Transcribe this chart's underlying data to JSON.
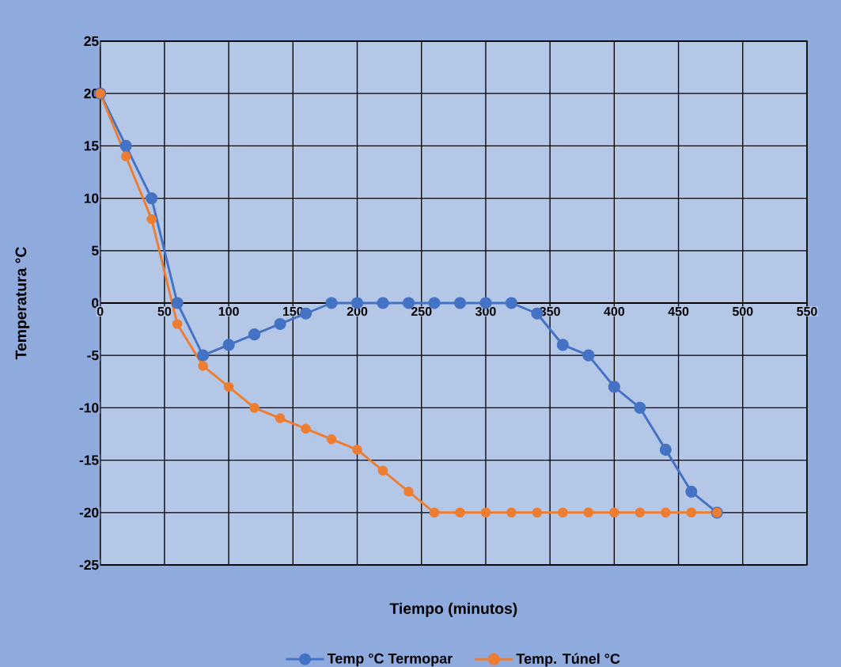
{
  "chart_data": {
    "type": "line",
    "xlabel": "Tiempo (minutos)",
    "ylabel": "Temperatura °C",
    "x": [
      0,
      20,
      40,
      60,
      80,
      100,
      120,
      140,
      160,
      180,
      200,
      220,
      240,
      260,
      280,
      300,
      320,
      340,
      360,
      380,
      400,
      420,
      440,
      460,
      480
    ],
    "series": [
      {
        "name": "Temp °C Termopar",
        "color": "#4472c4",
        "values": [
          20,
          15,
          10,
          0,
          -5,
          -4,
          -3,
          -2,
          -1,
          0,
          0,
          0,
          0,
          0,
          0,
          0,
          0,
          -1,
          -4,
          -5,
          -8,
          -10,
          -14,
          -18,
          -20
        ]
      },
      {
        "name": "Temp. Túnel °C",
        "color": "#ed7d31",
        "values": [
          20,
          14,
          8,
          -2,
          -6,
          -8,
          -10,
          -11,
          -12,
          -13,
          -14,
          -16,
          -18,
          -20,
          -20,
          -20,
          -20,
          -20,
          -20,
          -20,
          -20,
          -20,
          -20,
          -20,
          -20
        ]
      }
    ],
    "xlim": [
      0,
      550
    ],
    "xticks": [
      0,
      50,
      100,
      150,
      200,
      250,
      300,
      350,
      400,
      450,
      500,
      550
    ],
    "ylim": [
      -25,
      25
    ],
    "yticks": [
      -25,
      -20,
      -15,
      -10,
      -5,
      0,
      5,
      10,
      15,
      20,
      25
    ],
    "grid": true,
    "legend": "bottom",
    "marker": "circle",
    "line_style": "solid"
  }
}
